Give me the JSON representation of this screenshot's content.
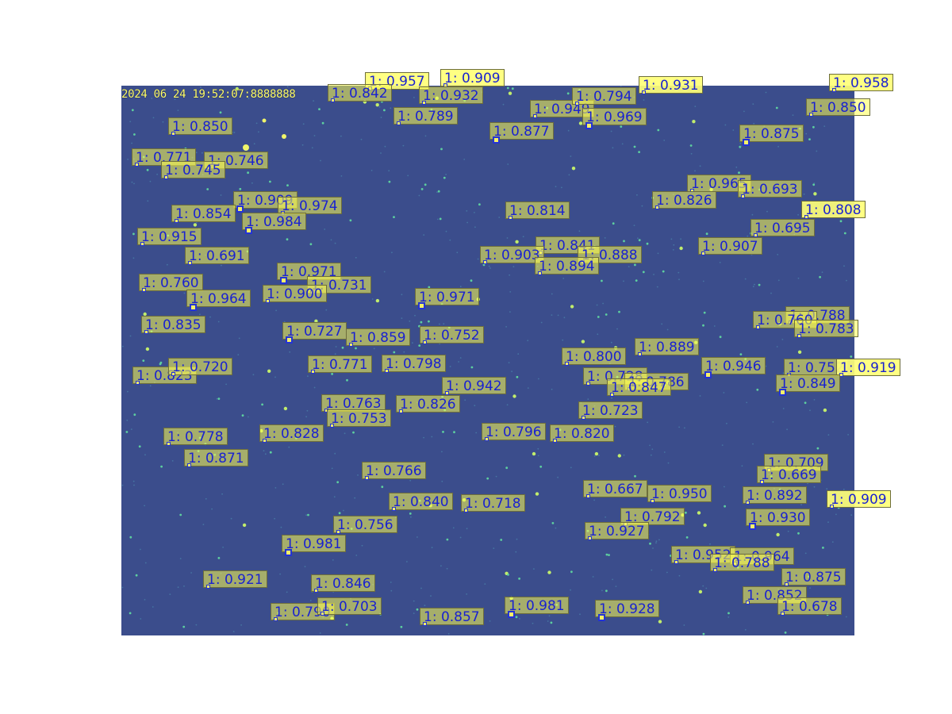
{
  "colors": {
    "background": "#3b4d8c",
    "star": "#a8f06a",
    "label_text": "#1a22d0",
    "label_fill": "#ffff50",
    "marker": "#2433d6"
  },
  "timestamp": "2024 06 24 19:52:07:8888888",
  "detections": [
    "1: 0.957",
    "1: 0.909",
    "1: 0.842",
    "1: 0.932",
    "1: 0.789",
    "1: 0.949",
    "1: 0.794",
    "1: 0.969",
    "1: 0.877",
    "1: 0.931",
    "1: 0.958",
    "1: 0.850",
    "1: 0.850",
    "1: 0.875",
    "1: 0.771",
    "1: 0.746",
    "1: 0.745",
    "1: 0.909",
    "1: 0.974",
    "1: 0.854",
    "1: 0.984",
    "1: 0.965",
    "1: 0.693",
    "1: 0.826",
    "1: 0.808",
    "1: 0.814",
    "1: 0.915",
    "1: 0.695",
    "1: 0.691",
    "1: 0.841",
    "1: 0.903",
    "1: 0.888",
    "1: 0.894",
    "1: 0.907",
    "1: 0.971",
    "1: 0.760",
    "1: 0.731",
    "1: 0.900",
    "1: 0.964",
    "1: 0.971",
    "1: 0.835",
    "1: 0.788",
    "1: 0.760",
    "1: 0.783",
    "1: 0.727",
    "1: 0.859",
    "1: 0.752",
    "1: 0.889",
    "1: 0.800",
    "1: 0.946",
    "1: 0.771",
    "1: 0.798",
    "1: 0.823",
    "1: 0.720",
    "1: 0.752",
    "1: 0.919",
    "1: 0.728",
    "1: 0.786",
    "1: 0.847",
    "1: 0.849",
    "1: 0.942",
    "1: 0.763",
    "1: 0.826",
    "1: 0.753",
    "1: 0.723",
    "1: 0.828",
    "1: 0.796",
    "1: 0.820",
    "1: 0.778",
    "1: 0.871",
    "1: 0.709",
    "1: 0.669",
    "1: 0.766",
    "1: 0.667",
    "1: 0.950",
    "1: 0.892",
    "1: 0.909",
    "1: 0.840",
    "1: 0.718",
    "1: 0.792",
    "1: 0.930",
    "1: 0.756",
    "1: 0.927",
    "1: 0.952",
    "1: 0.964",
    "1: 0.981",
    "1: 0.788",
    "1: 0.875",
    "1: 0.921",
    "1: 0.846",
    "1: 0.852",
    "1: 0.790",
    "1: 0.703",
    "1: 0.857",
    "1: 0.981",
    "1: 0.928",
    "1: 0.678"
  ]
}
